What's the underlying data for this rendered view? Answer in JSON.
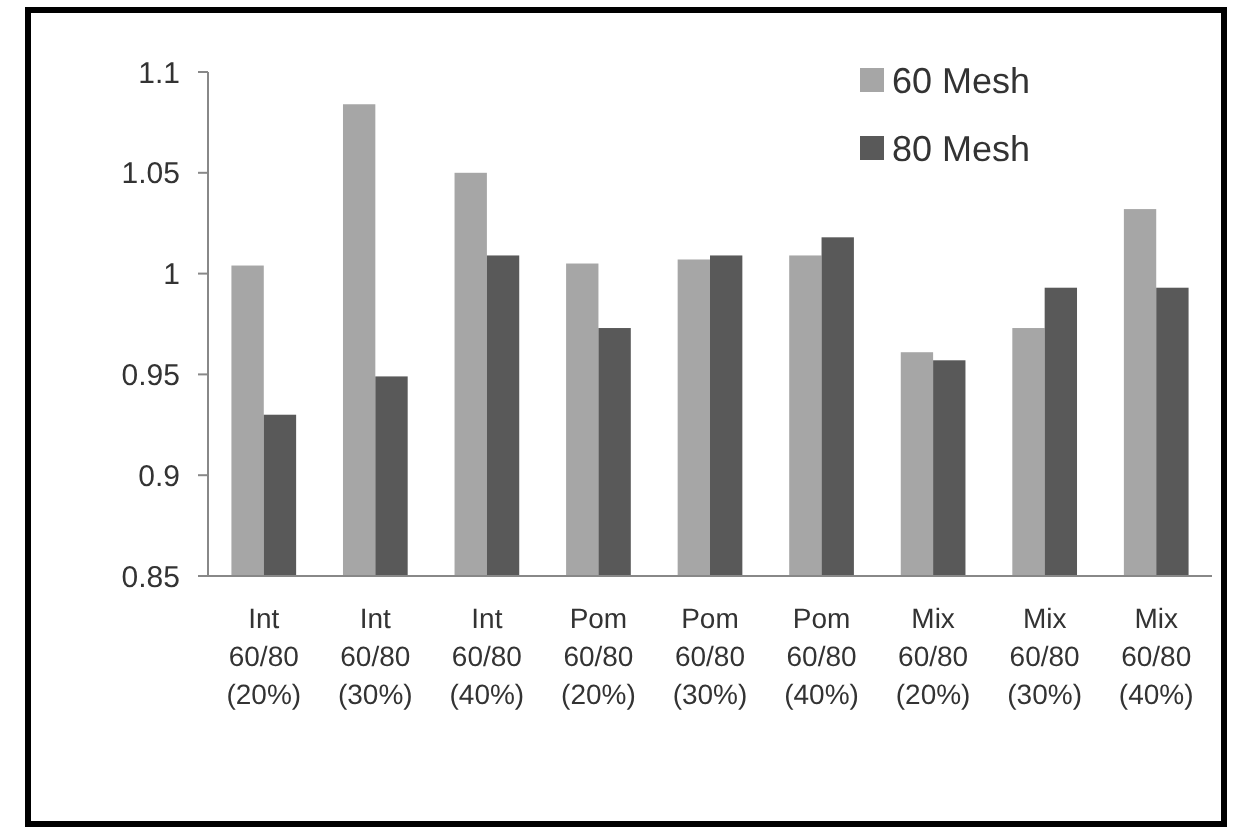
{
  "chart_data": {
    "type": "bar",
    "categories": [
      "Int\n60/80\n(20%)",
      "Int\n60/80\n(30%)",
      "Int\n60/80\n(40%)",
      "Pom\n60/80\n(20%)",
      "Pom\n60/80\n(30%)",
      "Pom\n60/80\n(40%)",
      "Mix\n60/80\n(20%)",
      "Mix\n60/80\n(30%)",
      "Mix\n60/80\n(40%)"
    ],
    "series": [
      {
        "name": "60 Mesh",
        "color": "#a6a6a6",
        "values": [
          1.004,
          1.084,
          1.05,
          1.005,
          1.007,
          1.009,
          0.961,
          0.973,
          1.032
        ]
      },
      {
        "name": "80 Mesh",
        "color": "#595959",
        "values": [
          0.93,
          0.949,
          1.009,
          0.973,
          1.009,
          1.018,
          0.957,
          0.993,
          0.993
        ]
      }
    ],
    "ylim": [
      0.85,
      1.1
    ],
    "yticks": [
      0.85,
      0.9,
      0.95,
      1,
      1.05,
      1.1
    ],
    "grid": false,
    "legend": "top right"
  }
}
